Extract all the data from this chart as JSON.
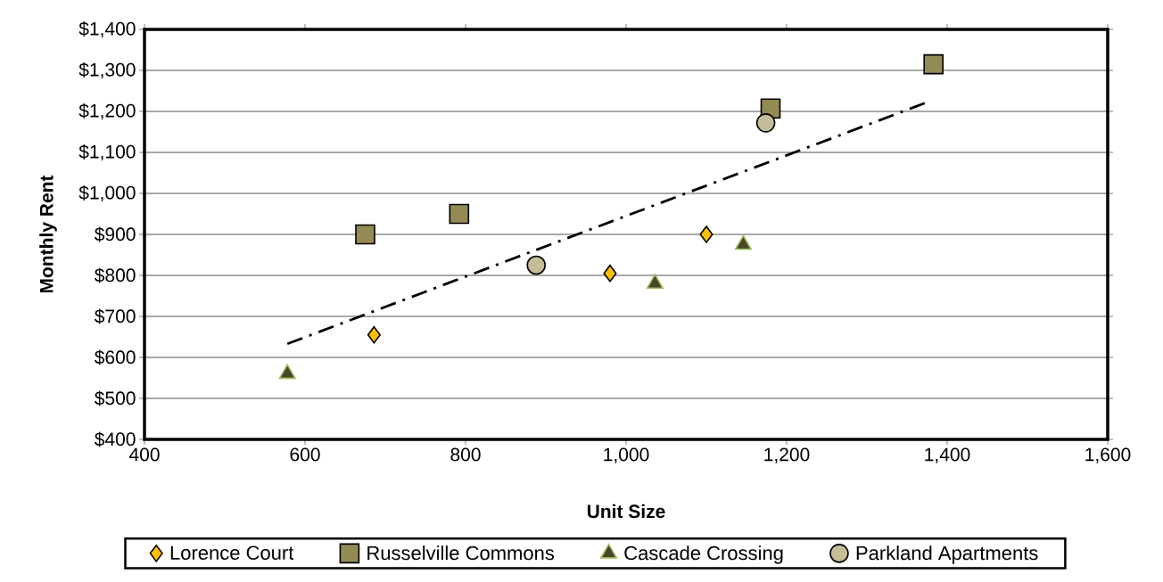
{
  "chart_data": {
    "type": "scatter",
    "xlabel": "Unit Size",
    "ylabel": "Monthly Rent",
    "xlim": [
      400,
      1600
    ],
    "ylim": [
      400,
      1400
    ],
    "xticks": [
      400,
      600,
      800,
      {
        "value": 1000,
        "label": "1,000"
      },
      {
        "value": 1200,
        "label": "1,200"
      },
      {
        "value": 1400,
        "label": "1,400"
      },
      {
        "value": 1600,
        "label": "1,600"
      }
    ],
    "yticks": [
      {
        "value": 400,
        "label": "$400"
      },
      {
        "value": 500,
        "label": "$500"
      },
      {
        "value": 600,
        "label": "$600"
      },
      {
        "value": 700,
        "label": "$700"
      },
      {
        "value": 800,
        "label": "$800"
      },
      {
        "value": 900,
        "label": "$900"
      },
      {
        "value": 1000,
        "label": "$1,000"
      },
      {
        "value": 1100,
        "label": "$1,100"
      },
      {
        "value": 1200,
        "label": "$1,200"
      },
      {
        "value": 1300,
        "label": "$1,300"
      },
      {
        "value": 1400,
        "label": "$1,400"
      }
    ],
    "grid": "y",
    "legend": "bottom",
    "series": [
      {
        "name": "Lorence Court",
        "color": "#ffc000",
        "marker": "diamond",
        "x": [
          686,
          980,
          1100
        ],
        "values": [
          655,
          805,
          900
        ]
      },
      {
        "name": "Russelville Commons",
        "color": "#948a54",
        "marker": "square",
        "x": [
          675,
          792,
          1180,
          1383
        ],
        "values": [
          900,
          950,
          1207,
          1315
        ]
      },
      {
        "name": "Cascade Crossing",
        "color": "#4a452a",
        "marker": "triangle",
        "x": [
          578,
          1036,
          1146
        ],
        "values": [
          560,
          780,
          875
        ]
      },
      {
        "name": "Parkland Apartments",
        "color": "#c4bd97",
        "marker": "circle",
        "x": [
          888,
          1174
        ],
        "values": [
          825,
          1172
        ]
      },
      {
        "type": "line",
        "color": "#000000",
        "marker": "none",
        "line_style": "dashdot",
        "x": [
          578,
          1372
        ],
        "values": [
          633,
          1220
        ]
      }
    ]
  }
}
